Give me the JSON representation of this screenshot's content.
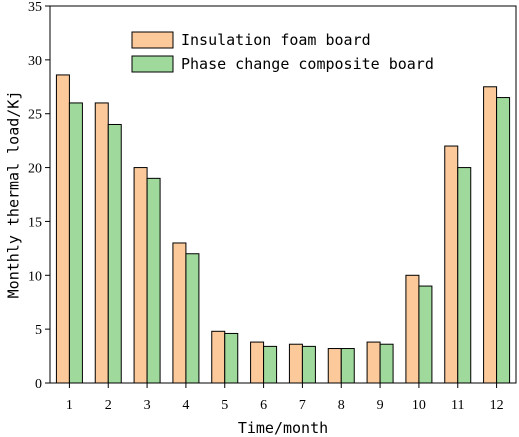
{
  "chart_data": {
    "type": "bar",
    "title": "",
    "xlabel": "Time/month",
    "ylabel": "Monthly thermal load/Kj",
    "categories": [
      "1",
      "2",
      "3",
      "4",
      "5",
      "6",
      "7",
      "8",
      "9",
      "10",
      "11",
      "12"
    ],
    "ylim": [
      0,
      35
    ],
    "yticks": [
      0,
      5,
      10,
      15,
      20,
      25,
      30,
      35
    ],
    "grid": false,
    "legend_position": "top-center",
    "series": [
      {
        "name": "Insulation foam board",
        "color": "#fcc99b",
        "values": [
          28.6,
          26.0,
          20.0,
          13.0,
          4.8,
          3.8,
          3.6,
          3.2,
          3.8,
          10.0,
          22.0,
          27.5
        ]
      },
      {
        "name": "Phase change composite board",
        "color": "#9fd99b",
        "values": [
          26.0,
          24.0,
          19.0,
          12.0,
          4.6,
          3.4,
          3.4,
          3.2,
          3.6,
          9.0,
          20.0,
          26.5
        ]
      }
    ]
  }
}
